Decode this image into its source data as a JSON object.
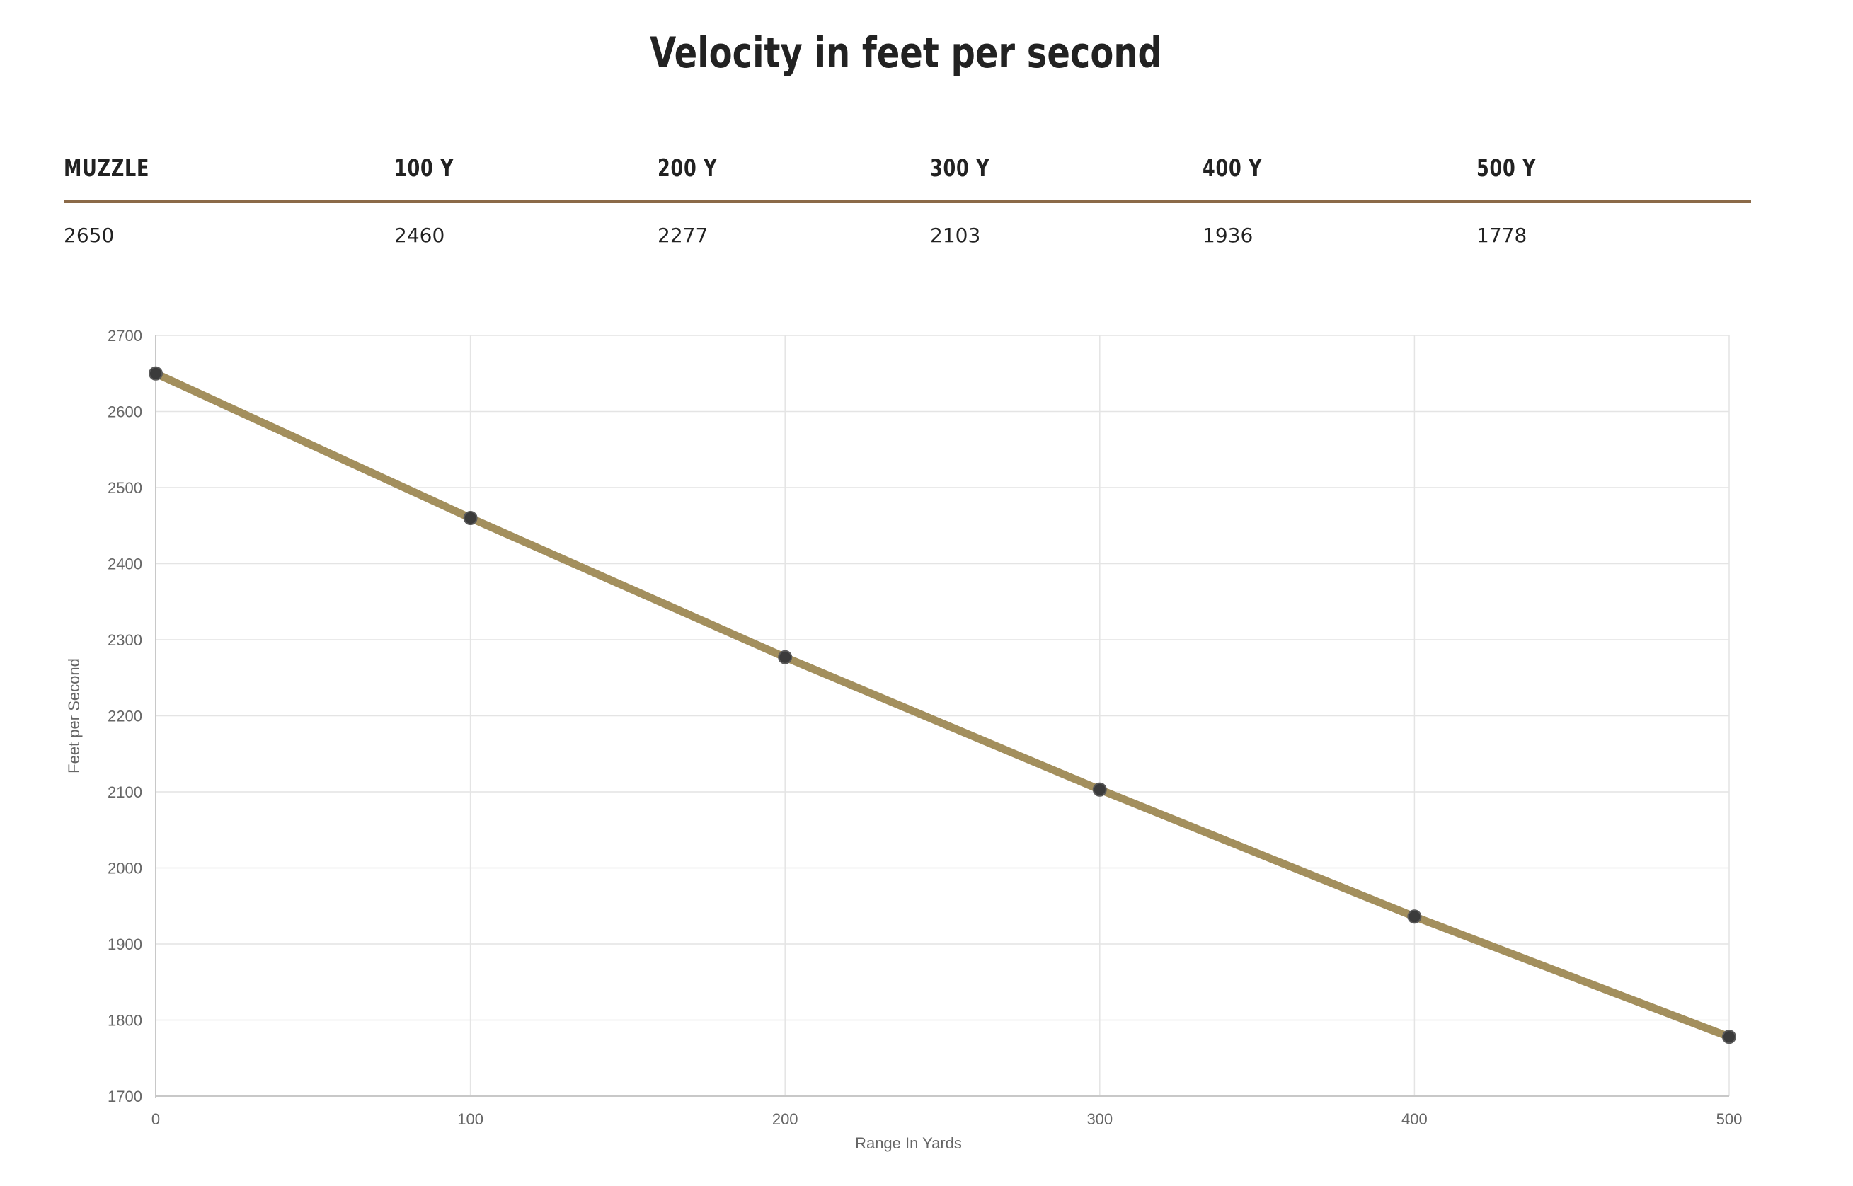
{
  "page": {
    "title": "Velocity in feet per second"
  },
  "velocity_table": {
    "headers": [
      "MUZZLE",
      "100 Y",
      "200 Y",
      "300 Y",
      "400 Y",
      "500 Y"
    ],
    "values": [
      "2650",
      "2460",
      "2277",
      "2103",
      "1936",
      "1778"
    ]
  },
  "colors": {
    "line": "#a38f5d",
    "point_fill": "#3b3b3b",
    "rule": "#8b6a48",
    "grid": "#e4e4e4",
    "axis": "#c8c8c8",
    "text": "#222222",
    "tick_text": "#666666"
  },
  "chart_data": {
    "type": "line",
    "x": [
      0,
      100,
      200,
      300,
      400,
      500
    ],
    "series": [
      {
        "values": [
          2650,
          2460,
          2277,
          2103,
          1936,
          1778
        ]
      }
    ],
    "xlabel": "Range In Yards",
    "ylabel": "Feet per Second",
    "xlim": [
      0,
      500
    ],
    "ylim": [
      1700,
      2700
    ],
    "xticks": [
      "0",
      "100",
      "200",
      "300",
      "400",
      "500"
    ],
    "yticks": [
      "2700",
      "2600",
      "2500",
      "2400",
      "2300",
      "2200",
      "2100",
      "2000",
      "1900",
      "1800",
      "1700"
    ],
    "grid": true,
    "legend": "none"
  }
}
